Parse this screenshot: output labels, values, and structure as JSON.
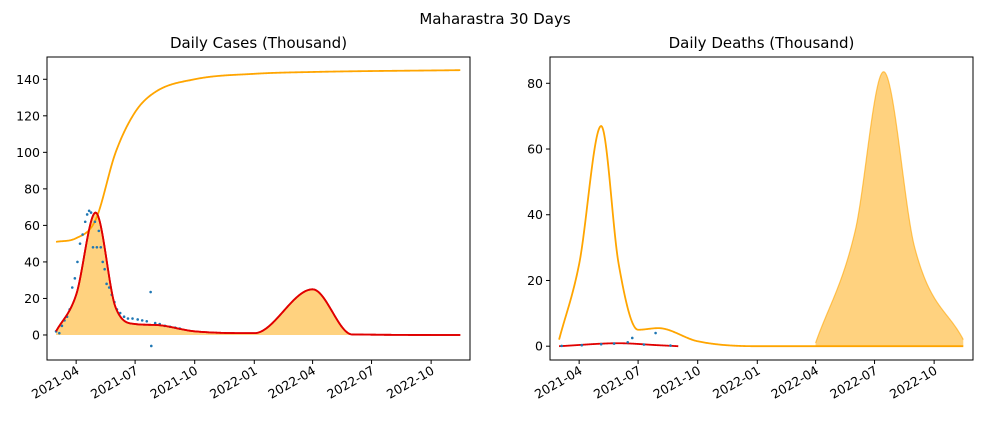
{
  "figure": {
    "title": "Maharastra 30 Days"
  },
  "chart_data": [
    {
      "type": "line",
      "title": "Daily Cases (Thousand)",
      "xlabel": "",
      "ylabel": "",
      "x_range": [
        "2021-02-15",
        "2022-11-30"
      ],
      "ylim": [
        -13.7,
        152.2
      ],
      "y_ticks": [
        0,
        20,
        40,
        60,
        80,
        100,
        120,
        140
      ],
      "x_ticks": [
        "2021-04",
        "2021-07",
        "2021-10",
        "2022-01",
        "2022-04",
        "2022-07",
        "2022-10"
      ],
      "grid": false,
      "colors": {
        "fit": "#e00000",
        "envelope": "#ffa500",
        "fill": "#ffa500",
        "observed": "#1f77b4"
      },
      "fit_waves": [
        {
          "peak": "2021-05-01",
          "height": 62.0,
          "sigma_days": 18,
          "skew": "fast-rise"
        },
        {
          "peak": "2021-08-01",
          "height": 5.5,
          "sigma_days": 28
        },
        {
          "peak": "2022-04-01",
          "height": 25.0,
          "sigma_days": 16
        }
      ],
      "series": [
        {
          "kind": "line",
          "samples": [
            {
              "x": "2021-03-01",
              "y": 2.0
            },
            {
              "x": "2021-04-01",
              "y": 22.0
            },
            {
              "x": "2021-05-01",
              "y": 67.0
            },
            {
              "x": "2021-06-01",
              "y": 15.0
            },
            {
              "x": "2021-07-01",
              "y": 6.0
            },
            {
              "x": "2021-08-01",
              "y": 5.5
            },
            {
              "x": "2021-10-01",
              "y": 2.0
            },
            {
              "x": "2022-01-01",
              "y": 1.0
            },
            {
              "x": "2022-04-01",
              "y": 25.0
            },
            {
              "x": "2022-06-01",
              "y": 0.3
            },
            {
              "x": "2022-11-15",
              "y": 0.0
            }
          ]
        },
        {
          "kind": "line",
          "samples": [
            {
              "x": "2021-03-01",
              "y": 51.0
            },
            {
              "x": "2021-04-01",
              "y": 53.0
            },
            {
              "x": "2021-05-01",
              "y": 63.0
            },
            {
              "x": "2021-06-01",
              "y": 100.0
            },
            {
              "x": "2021-07-01",
              "y": 122.0
            },
            {
              "x": "2021-08-01",
              "y": 133.0
            },
            {
              "x": "2021-10-01",
              "y": 140.0
            },
            {
              "x": "2022-01-01",
              "y": 143.0
            },
            {
              "x": "2022-04-01",
              "y": 144.0
            },
            {
              "x": "2022-11-15",
              "y": 145.0
            }
          ]
        },
        {
          "kind": "scatter",
          "note": "daily observed points, approximate",
          "points": [
            {
              "x": "2021-03-01",
              "y": 2.0
            },
            {
              "x": "2021-03-06",
              "y": 1.0
            },
            {
              "x": "2021-03-10",
              "y": 5.0
            },
            {
              "x": "2021-03-14",
              "y": 8.0
            },
            {
              "x": "2021-03-18",
              "y": 10.0
            },
            {
              "x": "2021-03-22",
              "y": 14.0
            },
            {
              "x": "2021-03-26",
              "y": 26.0
            },
            {
              "x": "2021-03-30",
              "y": 31.0
            },
            {
              "x": "2021-04-03",
              "y": 40.0
            },
            {
              "x": "2021-04-07",
              "y": 50.0
            },
            {
              "x": "2021-04-11",
              "y": 55.0
            },
            {
              "x": "2021-04-15",
              "y": 62.0
            },
            {
              "x": "2021-04-18",
              "y": 66.0
            },
            {
              "x": "2021-04-21",
              "y": 68.0
            },
            {
              "x": "2021-04-24",
              "y": 67.0
            },
            {
              "x": "2021-04-27",
              "y": 48.0
            },
            {
              "x": "2021-04-30",
              "y": 62.0
            },
            {
              "x": "2021-05-03",
              "y": 48.0
            },
            {
              "x": "2021-05-06",
              "y": 57.0
            },
            {
              "x": "2021-05-09",
              "y": 48.0
            },
            {
              "x": "2021-05-12",
              "y": 40.0
            },
            {
              "x": "2021-05-15",
              "y": 36.0
            },
            {
              "x": "2021-05-18",
              "y": 28.0
            },
            {
              "x": "2021-05-22",
              "y": 26.0
            },
            {
              "x": "2021-05-26",
              "y": 22.0
            },
            {
              "x": "2021-05-30",
              "y": 18.0
            },
            {
              "x": "2021-06-03",
              "y": 14.0
            },
            {
              "x": "2021-06-08",
              "y": 12.0
            },
            {
              "x": "2021-06-14",
              "y": 10.0
            },
            {
              "x": "2021-06-20",
              "y": 9.0
            },
            {
              "x": "2021-06-27",
              "y": 9.0
            },
            {
              "x": "2021-07-05",
              "y": 8.5
            },
            {
              "x": "2021-07-12",
              "y": 8.0
            },
            {
              "x": "2021-07-19",
              "y": 7.5
            },
            {
              "x": "2021-07-25",
              "y": 23.5
            },
            {
              "x": "2021-07-26",
              "y": -6.0
            },
            {
              "x": "2021-08-01",
              "y": 6.5
            },
            {
              "x": "2021-08-08",
              "y": 6.0
            },
            {
              "x": "2021-08-16",
              "y": 5.0
            },
            {
              "x": "2021-08-24",
              "y": 4.5
            },
            {
              "x": "2021-09-01",
              "y": 4.0
            },
            {
              "x": "2021-09-08",
              "y": 3.5
            }
          ]
        }
      ]
    },
    {
      "type": "line",
      "title": "Daily Deaths (Thousand)",
      "xlabel": "",
      "ylabel": "",
      "x_range": [
        "2021-02-15",
        "2022-11-30"
      ],
      "ylim": [
        -4.2,
        88.0
      ],
      "y_ticks": [
        0,
        20,
        40,
        60,
        80
      ],
      "x_ticks": [
        "2021-04",
        "2021-07",
        "2021-10",
        "2022-01",
        "2022-04",
        "2022-07",
        "2022-10"
      ],
      "grid": false,
      "colors": {
        "fit": "#e00000",
        "envelope": "#ffa500",
        "fill": "#ffa500",
        "observed": "#1f77b4"
      },
      "series": [
        {
          "kind": "line",
          "samples": [
            {
              "x": "2021-03-01",
              "y": 2.0
            },
            {
              "x": "2021-04-01",
              "y": 25.0
            },
            {
              "x": "2021-05-05",
              "y": 67.0
            },
            {
              "x": "2021-06-01",
              "y": 25.0
            },
            {
              "x": "2021-07-01",
              "y": 5.0
            },
            {
              "x": "2021-08-01",
              "y": 5.5
            },
            {
              "x": "2021-10-01",
              "y": 1.5
            },
            {
              "x": "2022-01-01",
              "y": 0.0
            },
            {
              "x": "2022-11-15",
              "y": 0.0
            }
          ]
        },
        {
          "kind": "area",
          "samples": [
            {
              "x": "2022-04-01",
              "y": 1.0
            },
            {
              "x": "2022-06-01",
              "y": 35.0
            },
            {
              "x": "2022-07-15",
              "y": 83.5
            },
            {
              "x": "2022-09-01",
              "y": 30.0
            },
            {
              "x": "2022-11-15",
              "y": 2.0
            }
          ]
        },
        {
          "kind": "line",
          "samples": [
            {
              "x": "2021-03-01",
              "y": 0.0
            },
            {
              "x": "2021-06-01",
              "y": 0.9
            },
            {
              "x": "2021-08-01",
              "y": 0.3
            },
            {
              "x": "2021-09-01",
              "y": 0.0
            }
          ]
        },
        {
          "kind": "scatter",
          "points": [
            {
              "x": "2021-03-05",
              "y": 0.1
            },
            {
              "x": "2021-04-05",
              "y": 0.3
            },
            {
              "x": "2021-05-05",
              "y": 0.6
            },
            {
              "x": "2021-05-25",
              "y": 0.8
            },
            {
              "x": "2021-06-15",
              "y": 1.2
            },
            {
              "x": "2021-06-22",
              "y": 2.5
            },
            {
              "x": "2021-07-10",
              "y": 0.5
            },
            {
              "x": "2021-07-28",
              "y": 4.0
            },
            {
              "x": "2021-08-20",
              "y": 0.2
            }
          ]
        }
      ]
    }
  ]
}
